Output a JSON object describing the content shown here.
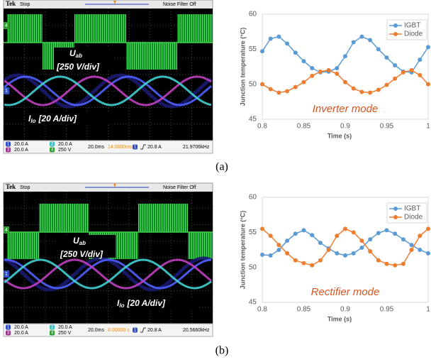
{
  "chart_data": [
    {
      "type": "line",
      "x_label": "Time (s)",
      "y_label": "Junction temperature (°C)",
      "annotation": "Inverter mode",
      "x": [
        0.8,
        0.81,
        0.82,
        0.83,
        0.84,
        0.85,
        0.86,
        0.87,
        0.88,
        0.89,
        0.9,
        0.91,
        0.92,
        0.93,
        0.94,
        0.95,
        0.96,
        0.97,
        0.98,
        0.99,
        1.0
      ],
      "series": [
        {
          "name": "IGBT",
          "color": "#5b9bd5",
          "values": [
            54.7,
            56.5,
            56.8,
            55.8,
            54.5,
            53.3,
            52.3,
            51.7,
            51.8,
            52.3,
            54.0,
            56.0,
            56.8,
            56.3,
            55.0,
            53.8,
            52.7,
            51.8,
            51.7,
            53.5,
            55.3
          ]
        },
        {
          "name": "Diode",
          "color": "#ed7d31",
          "values": [
            50.0,
            49.3,
            48.8,
            49.0,
            49.6,
            50.3,
            51.2,
            51.8,
            52.0,
            51.5,
            50.3,
            49.4,
            48.9,
            48.8,
            49.2,
            49.9,
            50.8,
            51.7,
            52.0,
            51.3,
            50.0
          ]
        }
      ],
      "xlim": [
        0.8,
        1.0
      ],
      "xticks": [
        0.8,
        0.85,
        0.9,
        0.95,
        1
      ],
      "ylim": [
        45,
        60
      ],
      "yticks": [
        45,
        50,
        55,
        60
      ],
      "grid": false,
      "legend": "upper-right"
    },
    {
      "type": "line",
      "x_label": "Time (s)",
      "y_label": "Junction temperature (°C)",
      "annotation": "Rectifier mode",
      "x": [
        0.8,
        0.81,
        0.82,
        0.83,
        0.84,
        0.85,
        0.86,
        0.87,
        0.88,
        0.89,
        0.9,
        0.91,
        0.92,
        0.93,
        0.94,
        0.95,
        0.96,
        0.97,
        0.98,
        0.99,
        1.0
      ],
      "series": [
        {
          "name": "IGBT",
          "color": "#5b9bd5",
          "values": [
            51.8,
            51.7,
            52.5,
            53.8,
            54.8,
            55.3,
            54.6,
            53.5,
            52.7,
            52.0,
            51.7,
            52.0,
            52.8,
            54.0,
            54.9,
            55.3,
            54.8,
            54.0,
            53.2,
            52.5,
            52.0
          ]
        },
        {
          "name": "Diode",
          "color": "#ed7d31",
          "values": [
            55.5,
            54.5,
            53.2,
            52.0,
            51.0,
            50.6,
            50.3,
            51.0,
            52.5,
            54.5,
            55.5,
            55.0,
            53.8,
            52.3,
            51.0,
            50.5,
            50.3,
            50.5,
            52.5,
            54.5,
            55.5
          ]
        }
      ],
      "xlim": [
        0.8,
        1.0
      ],
      "xticks": [
        0.8,
        0.85,
        0.9,
        0.95,
        1
      ],
      "ylim": [
        45,
        60
      ],
      "yticks": [
        45,
        50,
        55,
        60
      ],
      "grid": false,
      "legend": "upper-right"
    }
  ],
  "captions": [
    "(a)",
    "(b)"
  ],
  "scopes": [
    {
      "brand": "Tek",
      "status": "Stop",
      "filter": "Noise Filter Off",
      "voltage_label": {
        "symbol": "U",
        "subscript": "ab",
        "scale": "[250 V/div]"
      },
      "current_label": {
        "symbol": "I",
        "subscript": "lo",
        "scale": "[20 A/div]"
      },
      "markers": [
        "4",
        "1"
      ],
      "channels": [
        {
          "number": "1",
          "setting": "20.0 A"
        },
        {
          "number": "2",
          "setting": "20.0 A"
        },
        {
          "number": "3",
          "setting": "20.0 A"
        },
        {
          "number": "4",
          "setting": "250 V"
        }
      ],
      "timebase": "20.0ms",
      "position": "14.0000ms",
      "trigger_channel": "1",
      "trigger": "20.8 A",
      "frequency": "21.9706kHz"
    },
    {
      "brand": "Tek",
      "status": "Stop",
      "filter": "Noise Filter Off",
      "voltage_label": {
        "symbol": "U",
        "subscript": "ab",
        "scale": "[250 V/div]"
      },
      "current_label": {
        "symbol": "I",
        "subscript": "lo",
        "scale": "[20 A/div]"
      },
      "markers": [
        "4",
        "1"
      ],
      "channels": [
        {
          "number": "1",
          "setting": "20.0 A"
        },
        {
          "number": "2",
          "setting": "20.0 A"
        },
        {
          "number": "3",
          "setting": "20.0 A"
        },
        {
          "number": "4",
          "setting": "250 V"
        }
      ],
      "timebase": "20.0ms",
      "position": "8.00000 s",
      "trigger_channel": "1",
      "trigger": "20.8 A",
      "frequency": "20.5660kHz"
    }
  ]
}
